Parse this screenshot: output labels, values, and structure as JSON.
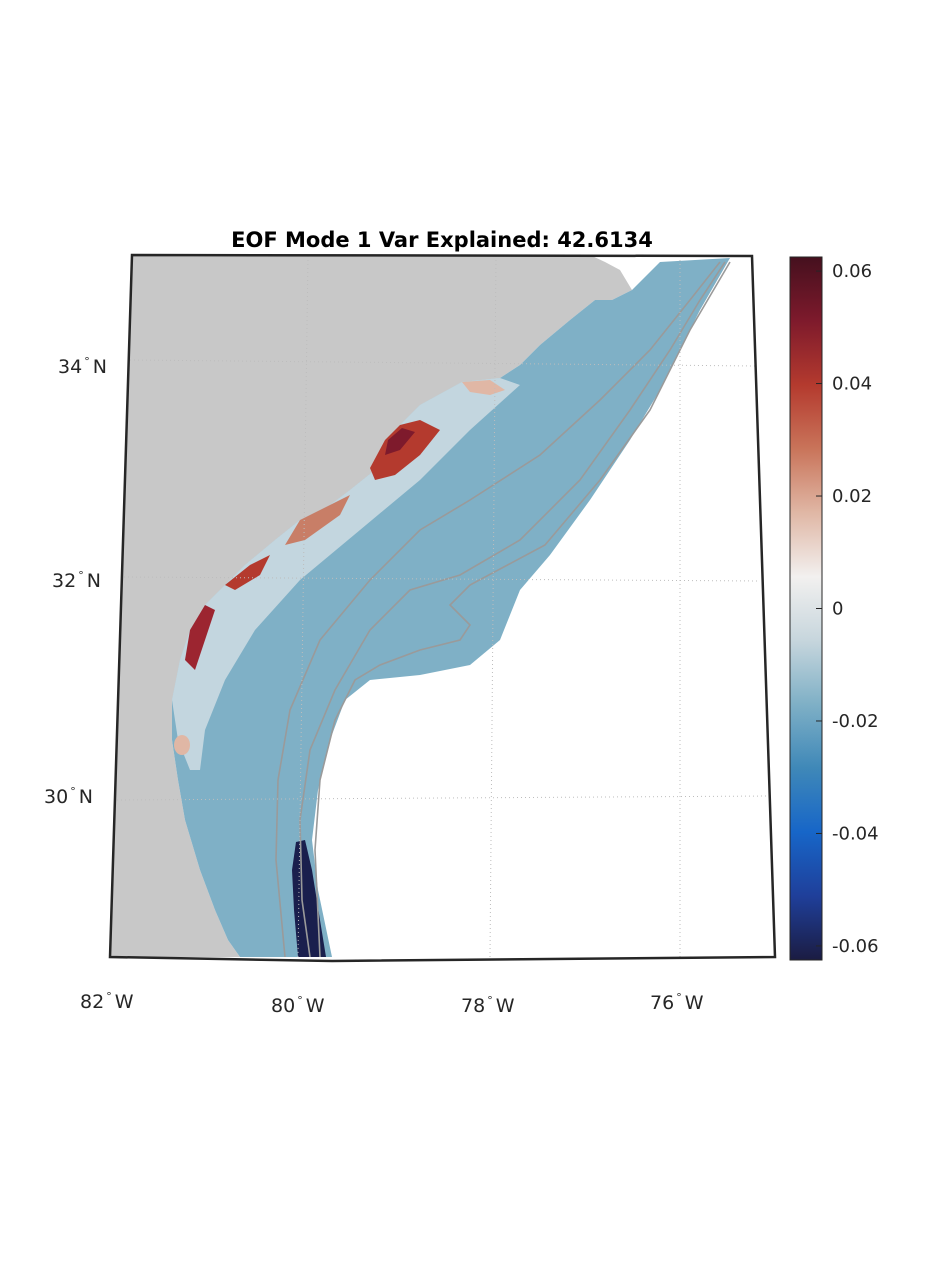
{
  "title": "EOF Mode 1 Var Explained: 42.6134",
  "map": {
    "lon_labels": [
      {
        "deg": "82",
        "dir": "W"
      },
      {
        "deg": "80",
        "dir": "W"
      },
      {
        "deg": "78",
        "dir": "W"
      },
      {
        "deg": "76",
        "dir": "W"
      }
    ],
    "lat_labels": [
      {
        "deg": "34",
        "dir": "N"
      },
      {
        "deg": "32",
        "dir": "N"
      },
      {
        "deg": "30",
        "dir": "N"
      }
    ],
    "colors": {
      "land": "#c8c8c8",
      "ocean_ambient": "#7fb0c6",
      "coastal_positive": "#b43a2e",
      "gulf_stream_band": "#1a1f4d",
      "isobath": "#9a9a9a"
    }
  },
  "colorbar": {
    "range": [
      -0.0625,
      0.0625
    ],
    "ticks": [
      "0.06",
      "0.04",
      "0.02",
      "0",
      "-0.02",
      "-0.04",
      "-0.06"
    ],
    "tick_values": [
      0.06,
      0.04,
      0.02,
      0,
      -0.02,
      -0.04,
      -0.06
    ],
    "colors": [
      "#1b1c42",
      "#1f3f9a",
      "#1766c8",
      "#3f88b8",
      "#7fb0c6",
      "#c7d6dd",
      "#f2f0ef",
      "#e0b7a5",
      "#c9745a",
      "#b43a2e",
      "#7e1a2c",
      "#45101e"
    ]
  }
}
